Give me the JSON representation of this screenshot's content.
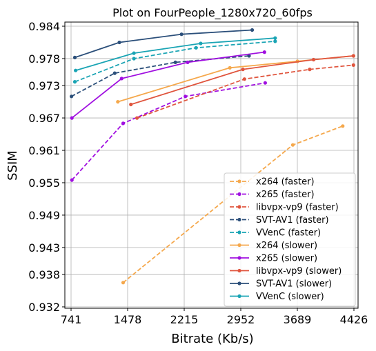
{
  "chart_data": {
    "type": "line",
    "title": "Plot on FourPeople_1280x720_60fps",
    "xlabel": "Bitrate (Kb/s)",
    "ylabel": "SSIM",
    "xlim": [
      741,
      4426
    ],
    "ylim": [
      0.932,
      0.984
    ],
    "xticks": [
      "741",
      "1478",
      "2215",
      "2952",
      "3689",
      "4426"
    ],
    "yticks": [
      "0.932",
      "0.938",
      "0.943",
      "0.949",
      "0.955",
      "0.961",
      "0.967",
      "0.973",
      "0.978",
      "0.984"
    ],
    "grid": true,
    "legend_position": "lower-right",
    "series": [
      {
        "name": "x264 (faster)",
        "color": "#f5a84c",
        "dashed": true,
        "x": [
          1420,
          3630,
          4280
        ],
        "y": [
          0.9365,
          0.962,
          0.9655
        ]
      },
      {
        "name": "x265 (faster)",
        "color": "#a00fe0",
        "dashed": true,
        "x": [
          752,
          1420,
          2230,
          3270
        ],
        "y": [
          0.9555,
          0.966,
          0.971,
          0.9735
        ]
      },
      {
        "name": "libvpx-vp9 (faster)",
        "color": "#e0553e",
        "dashed": true,
        "x": [
          1600,
          3000,
          3850,
          4420
        ],
        "y": [
          0.967,
          0.9742,
          0.976,
          0.9768
        ]
      },
      {
        "name": "SVT-AV1 (faster)",
        "color": "#2b4f7a",
        "dashed": true,
        "x": [
          746,
          1310,
          2100,
          3060
        ],
        "y": [
          0.971,
          0.9753,
          0.9773,
          0.9785
        ]
      },
      {
        "name": "VVenC (faster)",
        "color": "#19a4b4",
        "dashed": true,
        "x": [
          790,
          1560,
          2370,
          3400
        ],
        "y": [
          0.9737,
          0.978,
          0.98,
          0.9812
        ]
      },
      {
        "name": "x264 (slower)",
        "color": "#f5a84c",
        "dashed": false,
        "x": [
          1350,
          2810,
          3690,
          4420
        ],
        "y": [
          0.97,
          0.9763,
          0.9775,
          0.9785
        ]
      },
      {
        "name": "x265 (slower)",
        "color": "#a00fe0",
        "dashed": false,
        "x": [
          752,
          1400,
          2260,
          3260
        ],
        "y": [
          0.967,
          0.9743,
          0.9773,
          0.9792
        ]
      },
      {
        "name": "libvpx-vp9 (slower)",
        "color": "#e0553e",
        "dashed": false,
        "x": [
          1520,
          2980,
          3900,
          4420
        ],
        "y": [
          0.9695,
          0.976,
          0.9778,
          0.9785
        ]
      },
      {
        "name": "SVT-AV1 (slower)",
        "color": "#2b4f7a",
        "dashed": false,
        "x": [
          790,
          1370,
          2180,
          3100
        ],
        "y": [
          0.9782,
          0.981,
          0.9825,
          0.9833
        ]
      },
      {
        "name": "VVenC (slower)",
        "color": "#19a4b4",
        "dashed": false,
        "x": [
          800,
          1560,
          2430,
          3400
        ],
        "y": [
          0.9758,
          0.979,
          0.9808,
          0.9818
        ]
      }
    ]
  }
}
